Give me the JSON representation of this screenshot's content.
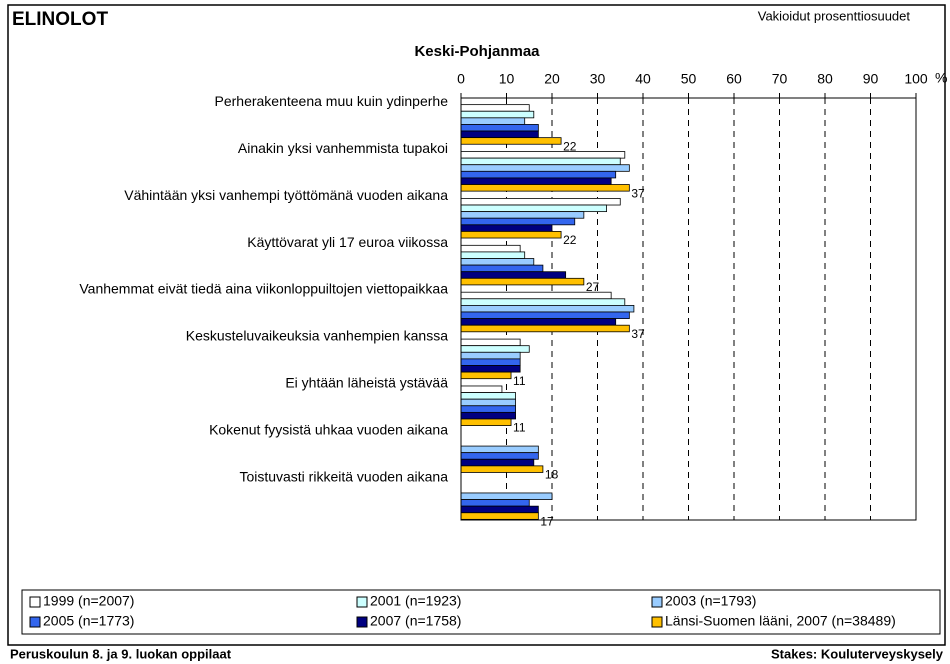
{
  "chart_data": {
    "type": "hbar",
    "title": "ELINOLOT",
    "subtitle": "Keski-Pohjanmaa",
    "note": "Vakioidut prosenttiosuudet",
    "xlabel": "%",
    "footer_left": "Peruskoulun 8. ja 9. luokan oppilaat",
    "footer_right": "Stakes: Kouluterveyskysely",
    "categories": [
      "Perherakenteena muu kuin ydinperhe",
      "Ainakin yksi vanhemmista tupakoi",
      "Vähintään yksi vanhempi työttömänä vuoden aikana",
      "Käyttövarat yli 17 euroa viikossa",
      "Vanhemmat eivät tiedä aina viikonloppuiltojen viettopaikkaa",
      "Keskusteluvaikeuksia vanhempien kanssa",
      "Ei yhtään läheistä ystävää",
      "Kokenut fyysistä uhkaa vuoden aikana",
      "Toistuvasti rikkeitä vuoden aikana"
    ],
    "series": [
      {
        "name": "1999 (n=2007)",
        "color": "#ffffff",
        "values": [
          15,
          36,
          35,
          13,
          33,
          13,
          9,
          null,
          null
        ]
      },
      {
        "name": "2001 (n=1923)",
        "color": "#ccffff",
        "values": [
          16,
          35,
          32,
          14,
          36,
          15,
          12,
          null,
          null
        ]
      },
      {
        "name": "2003 (n=1793)",
        "color": "#99ccff",
        "values": [
          14,
          37,
          27,
          16,
          38,
          13,
          12,
          17,
          20
        ]
      },
      {
        "name": "2005 (n=1773)",
        "color": "#3366ee",
        "values": [
          17,
          34,
          25,
          18,
          37,
          13,
          12,
          17,
          15
        ]
      },
      {
        "name": "2007 (n=1758)",
        "color": "#000080",
        "values": [
          17,
          33,
          20,
          23,
          34,
          13,
          12,
          16,
          17
        ]
      },
      {
        "name": "Länsi-Suomen lääni, 2007 (n=38489)",
        "color": "#ffc000",
        "show_labels": true,
        "values": [
          22,
          37,
          22,
          27,
          37,
          11,
          11,
          18,
          17
        ]
      }
    ],
    "xlim": [
      0,
      100
    ],
    "xticks": [
      0,
      10,
      20,
      30,
      40,
      50,
      60,
      70,
      80,
      90,
      100
    ],
    "grid": true,
    "legend": "bottom"
  }
}
